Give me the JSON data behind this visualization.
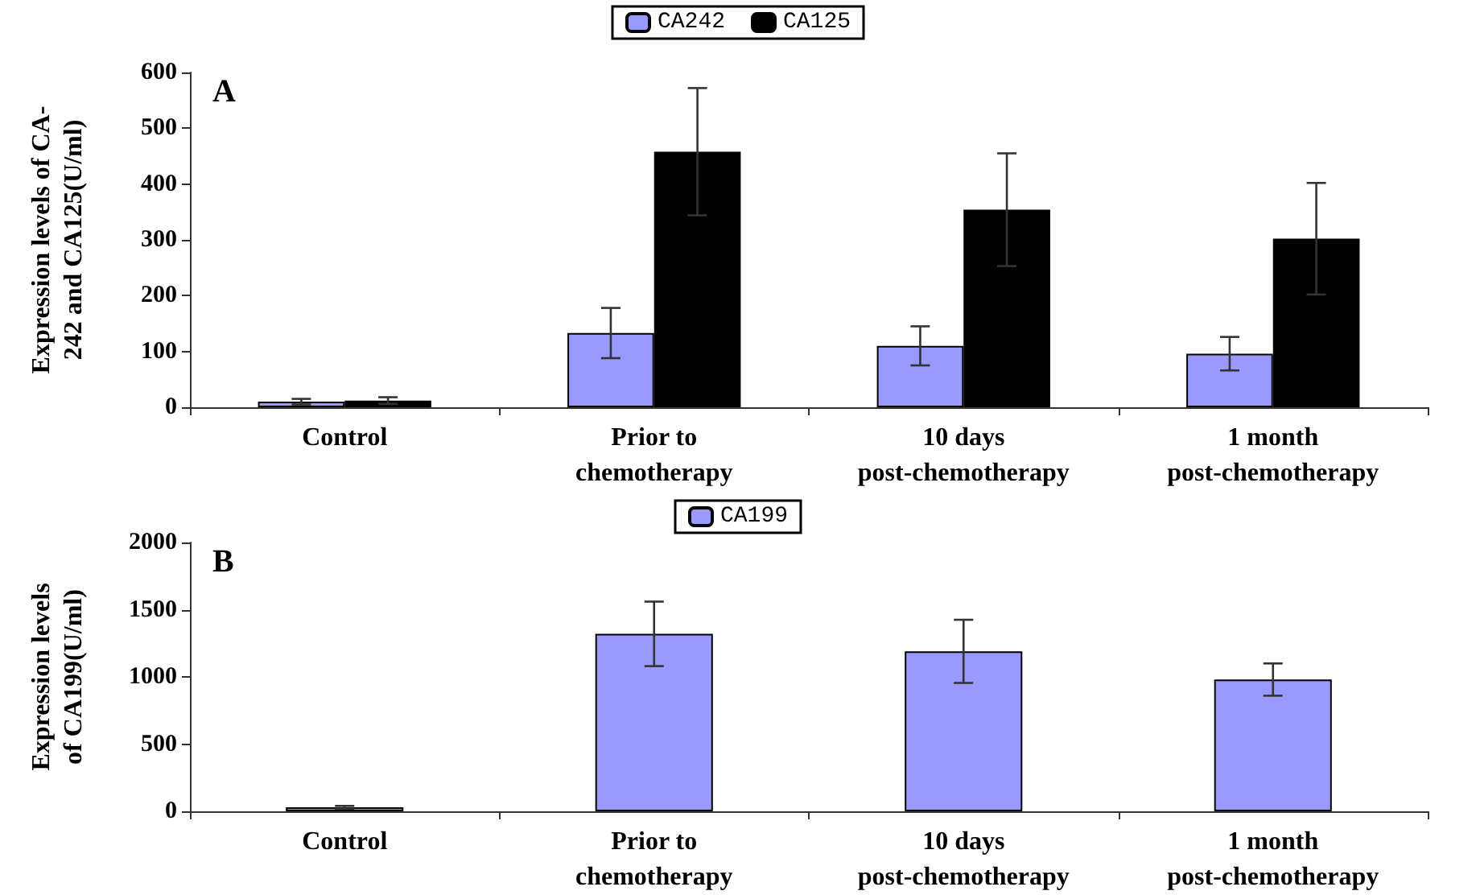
{
  "chart_data": [
    {
      "type": "bar",
      "ylabel": "Expression levels of CA-\n242 and CA125(U/ml)",
      "annotations": [
        "A"
      ],
      "categories": [
        "Control",
        "Prior to\nchemotherapy",
        "10 days\npost-chemotherapy",
        "1 month\npost-chemotherapy"
      ],
      "series": [
        {
          "name": "CA242",
          "color": "#9999ff",
          "values": [
            10,
            133,
            110,
            96
          ],
          "errors": [
            5,
            45,
            35,
            30
          ]
        },
        {
          "name": "CA125",
          "color": "#000000",
          "values": [
            12,
            458,
            354,
            302
          ],
          "errors": [
            6,
            114,
            101,
            100
          ]
        }
      ],
      "ylim": [
        0,
        600
      ],
      "yticks": [
        0,
        100,
        200,
        300,
        400,
        500,
        600
      ],
      "grid": false,
      "legend": "top"
    },
    {
      "type": "bar",
      "ylabel": "Expression levels\nof CA199(U/ml)",
      "annotations": [
        "B"
      ],
      "categories": [
        "Control",
        "Prior to\nchemotherapy",
        "10 days\npost-chemotherapy",
        "1 month\npost-chemotherapy"
      ],
      "series": [
        {
          "name": "CA199",
          "color": "#9999ff",
          "values": [
            30,
            1320,
            1190,
            980
          ],
          "errors": [
            10,
            240,
            235,
            120
          ]
        }
      ],
      "ylim": [
        0,
        2000
      ],
      "yticks": [
        0,
        500,
        1000,
        1500,
        2000
      ],
      "grid": false,
      "legend": "top"
    }
  ]
}
